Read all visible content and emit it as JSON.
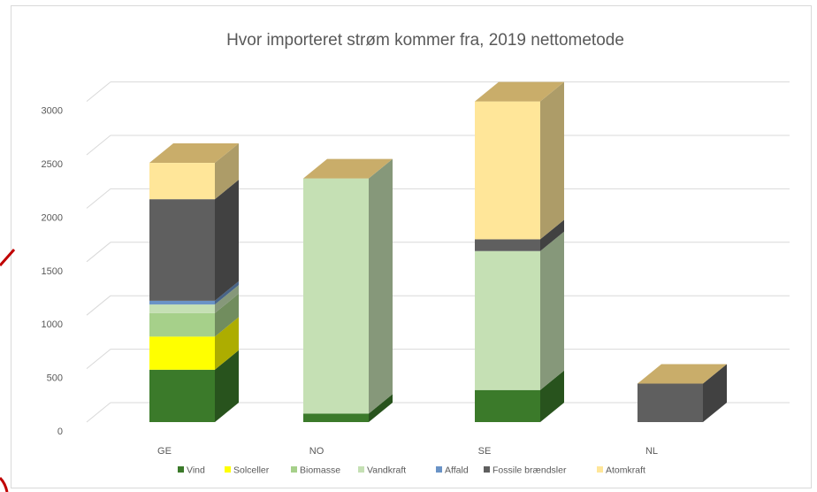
{
  "chart_data": {
    "type": "bar",
    "stacked": true,
    "three_d": true,
    "title": "Hvor importeret strøm kommer fra, 2019 nettometode",
    "categories": [
      "GE",
      "NO",
      "SE",
      "NL"
    ],
    "y_ticks": [
      "0",
      "500",
      "1000",
      "1500",
      "2000",
      "2500",
      "3000"
    ],
    "ylim": [
      0,
      3000
    ],
    "grid": true,
    "legend_position": "bottom",
    "series": [
      {
        "name": "Vind",
        "color": "#3b7a2a",
        "values": [
          490,
          80,
          300,
          0
        ]
      },
      {
        "name": "Solceller",
        "color": "#ffff00",
        "values": [
          310,
          0,
          0,
          0
        ]
      },
      {
        "name": "Biomasse",
        "color": "#a6d08a",
        "values": [
          220,
          0,
          0,
          0
        ]
      },
      {
        "name": "Vandkraft",
        "color": "#c5e0b4",
        "values": [
          80,
          2200,
          1300,
          0
        ]
      },
      {
        "name": "Affald",
        "color": "#6a93c6",
        "values": [
          35,
          0,
          0,
          0
        ]
      },
      {
        "name": "Fossile brændsler",
        "color": "#5f5f5f",
        "values": [
          950,
          0,
          110,
          360
        ]
      },
      {
        "name": "Atomkraft",
        "color": "#ffe699",
        "values": [
          340,
          0,
          1290,
          0
        ]
      }
    ]
  }
}
